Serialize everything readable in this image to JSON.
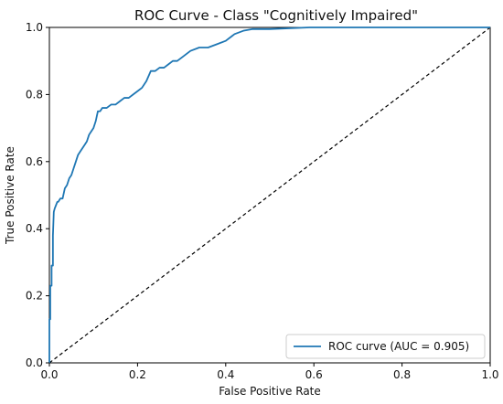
{
  "chart_data": {
    "type": "line",
    "title": "ROC Curve - Class \"Cognitively Impaired\"",
    "xlabel": "False Positive Rate",
    "ylabel": "True Positive Rate",
    "xlim": [
      0.0,
      1.0
    ],
    "ylim": [
      0.0,
      1.0
    ],
    "xticks": [
      "0.0",
      "0.2",
      "0.4",
      "0.6",
      "0.8",
      "1.0"
    ],
    "yticks": [
      "0.0",
      "0.2",
      "0.4",
      "0.6",
      "0.8",
      "1.0"
    ],
    "grid": false,
    "legend_position": "lower-right",
    "series": [
      {
        "name": "ROC curve (AUC = 0.905)",
        "color": "#1f77b4",
        "x": [
          0.0,
          0.0,
          0.002,
          0.002,
          0.005,
          0.005,
          0.008,
          0.008,
          0.01,
          0.012,
          0.015,
          0.018,
          0.02,
          0.025,
          0.03,
          0.035,
          0.04,
          0.045,
          0.05,
          0.055,
          0.06,
          0.065,
          0.07,
          0.075,
          0.08,
          0.085,
          0.09,
          0.095,
          0.1,
          0.105,
          0.11,
          0.115,
          0.12,
          0.13,
          0.14,
          0.15,
          0.16,
          0.17,
          0.18,
          0.19,
          0.2,
          0.21,
          0.22,
          0.23,
          0.24,
          0.25,
          0.26,
          0.27,
          0.28,
          0.29,
          0.3,
          0.32,
          0.34,
          0.36,
          0.38,
          0.4,
          0.42,
          0.44,
          0.46,
          0.5,
          0.59,
          0.7,
          0.8,
          0.9,
          1.0
        ],
        "y": [
          0.0,
          0.13,
          0.13,
          0.23,
          0.23,
          0.29,
          0.29,
          0.38,
          0.45,
          0.46,
          0.47,
          0.48,
          0.48,
          0.49,
          0.49,
          0.52,
          0.53,
          0.55,
          0.56,
          0.58,
          0.6,
          0.62,
          0.63,
          0.64,
          0.65,
          0.66,
          0.68,
          0.69,
          0.7,
          0.72,
          0.75,
          0.75,
          0.76,
          0.76,
          0.77,
          0.77,
          0.78,
          0.79,
          0.79,
          0.8,
          0.81,
          0.82,
          0.84,
          0.87,
          0.87,
          0.88,
          0.88,
          0.89,
          0.9,
          0.9,
          0.91,
          0.93,
          0.94,
          0.94,
          0.95,
          0.96,
          0.98,
          0.99,
          0.995,
          0.995,
          1.0,
          1.0,
          1.0,
          1.0,
          1.0
        ]
      },
      {
        "name": "",
        "color": "#000000",
        "dashed": true,
        "x": [
          0.0,
          1.0
        ],
        "y": [
          0.0,
          1.0
        ]
      }
    ]
  }
}
